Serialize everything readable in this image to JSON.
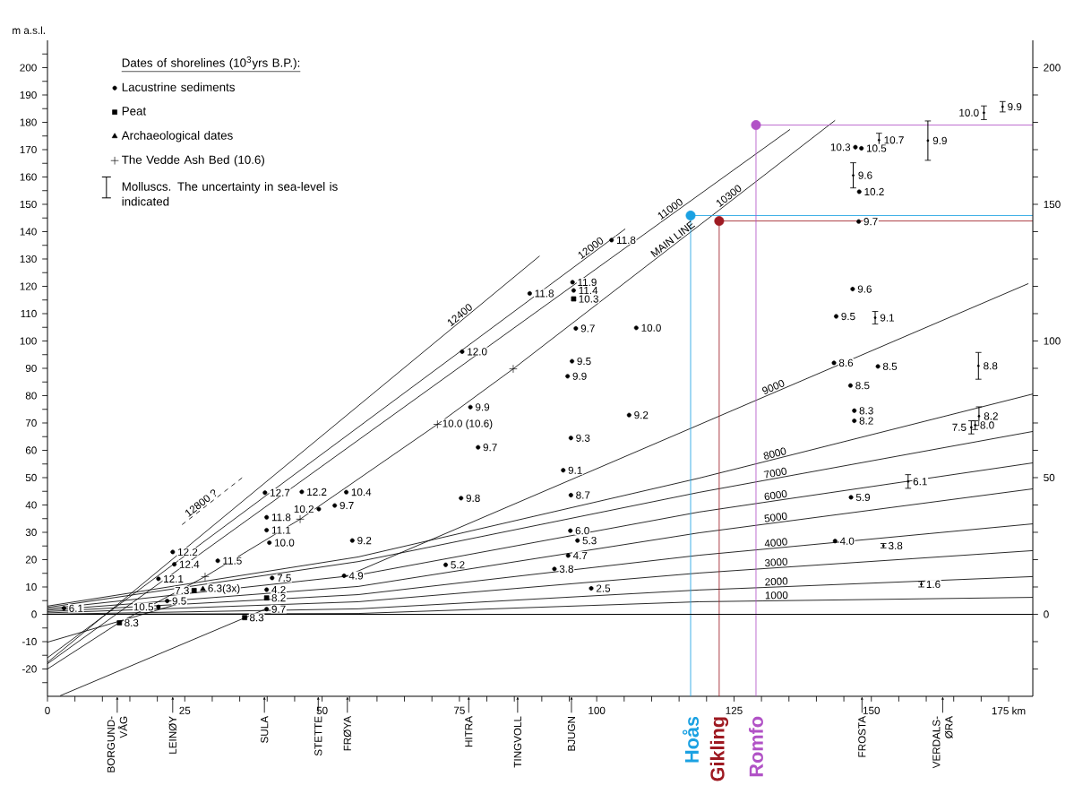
{
  "chart_data": {
    "type": "scatter",
    "ylabel": "m a.s.l.",
    "legend_title": "Dates of shorelines (10$^{3}$yrs B.P.):",
    "legend": "top left",
    "xlim": [
      0,
      179.4
    ],
    "ylim": [
      -30,
      210
    ],
    "y2lim": [
      -30,
      210
    ],
    "xticks": [
      0,
      {
        "value": 5,
        "label": null
      },
      {
        "value": 10,
        "label": null
      },
      {
        "value": 15,
        "label": null
      },
      {
        "value": 20,
        "label": null
      },
      25,
      {
        "value": 30,
        "label": null
      },
      {
        "value": 35,
        "label": null
      },
      {
        "value": 40,
        "label": null
      },
      {
        "value": 45,
        "label": null
      },
      50,
      {
        "value": 55,
        "label": null
      },
      {
        "value": 60,
        "label": null
      },
      {
        "value": 65,
        "label": null
      },
      {
        "value": 70,
        "label": null
      },
      75,
      {
        "value": 80,
        "label": null
      },
      {
        "value": 85,
        "label": null
      },
      {
        "value": 90,
        "label": null
      },
      {
        "value": 95,
        "label": null
      },
      100,
      {
        "value": 105,
        "label": null
      },
      {
        "value": 110,
        "label": null
      },
      {
        "value": 115,
        "label": null
      },
      {
        "value": 120,
        "label": null
      },
      125,
      {
        "value": 130,
        "label": null
      },
      {
        "value": 135,
        "label": null
      },
      {
        "value": 140,
        "label": null
      },
      {
        "value": 145,
        "label": null
      },
      150,
      {
        "value": 155,
        "label": null
      },
      {
        "value": 160,
        "label": null
      },
      {
        "value": 165,
        "label": null
      },
      {
        "value": 170,
        "label": null
      },
      {
        "value": 175,
        "label": "175 km"
      }
    ],
    "yticks": [
      {
        "value": -25,
        "label": null
      },
      -20,
      {
        "value": -15,
        "label": null
      },
      -10,
      {
        "value": -5,
        "label": null
      },
      0,
      {
        "value": 5,
        "label": null
      },
      10,
      {
        "value": 15,
        "label": null
      },
      20,
      {
        "value": 25,
        "label": null
      },
      30,
      {
        "value": 35,
        "label": null
      },
      40,
      {
        "value": 45,
        "label": null
      },
      50,
      {
        "value": 55,
        "label": null
      },
      60,
      {
        "value": 65,
        "label": null
      },
      70,
      {
        "value": 75,
        "label": null
      },
      80,
      {
        "value": 85,
        "label": null
      },
      90,
      {
        "value": 95,
        "label": null
      },
      100,
      {
        "value": 105,
        "label": null
      },
      110,
      {
        "value": 115,
        "label": null
      },
      120,
      {
        "value": 125,
        "label": null
      },
      130,
      {
        "value": 135,
        "label": null
      },
      140,
      {
        "value": 145,
        "label": null
      },
      150,
      {
        "value": 155,
        "label": null
      },
      160,
      {
        "value": 165,
        "label": null
      },
      170,
      {
        "value": 175,
        "label": null
      },
      180,
      {
        "value": 185,
        "label": null
      },
      190,
      {
        "value": 195,
        "label": null
      },
      200,
      {
        "value": 205,
        "label": null
      }
    ],
    "y2ticks": [
      {
        "value": -20,
        "label": null
      },
      {
        "value": -10,
        "label": null
      },
      0,
      {
        "value": 10,
        "label": null
      },
      {
        "value": 20,
        "label": null
      },
      {
        "value": 30,
        "label": null
      },
      {
        "value": 40,
        "label": null
      },
      50,
      {
        "value": 60,
        "label": null
      },
      {
        "value": 70,
        "label": null
      },
      {
        "value": 80,
        "label": null
      },
      {
        "value": 90,
        "label": null
      },
      100,
      {
        "value": 110,
        "label": null
      },
      {
        "value": 120,
        "label": null
      },
      {
        "value": 130,
        "label": null
      },
      {
        "value": 140,
        "label": null
      },
      150,
      {
        "value": 160,
        "label": null
      },
      {
        "value": 170,
        "label": null
      },
      {
        "value": 180,
        "label": null
      },
      {
        "value": 190,
        "label": null
      },
      200
    ],
    "ref_lines": [
      {
        "axis": "y",
        "value": 0
      }
    ],
    "series": [
      {
        "type": "line",
        "name": "12800 ?",
        "color": "#000000",
        "line_style": "dashed",
        "x": [
          24.5,
          25.6,
          35.6
        ],
        "values": [
          32.8,
          34.5,
          50.2
        ]
      },
      {
        "type": "line",
        "name": "12400",
        "color": "#000000",
        "x": [
          0,
          73.4,
          89.6
        ],
        "values": [
          -17.6,
          104.2,
          131.1
        ]
      },
      {
        "type": "line",
        "name": "12000",
        "color": "#000000",
        "x": [
          0,
          97.1,
          105.2
        ],
        "values": [
          -15.9,
          128.9,
          141.0
        ]
      },
      {
        "type": "line",
        "name": "11000",
        "color": "#000000",
        "x": [
          0,
          111.6,
          135.2
        ],
        "values": [
          -18.1,
          143.3,
          177.4
        ]
      },
      {
        "type": "line",
        "name": "10300",
        "color": "#000000",
        "x": [
          0,
          13.1,
          28.7,
          46.0,
          71.0,
          84.8,
          110.4,
          122.3,
          143.4
        ],
        "values": [
          -20.0,
          -3.0,
          13.8,
          34.8,
          69.5,
          89.8,
          129.5,
          147.9,
          180.7
        ]
      },
      {
        "type": "line",
        "name": "9000",
        "color": "#000000",
        "x": [
          54.2,
          130.3,
          178.6
        ],
        "values": [
          13.8,
          79.4,
          121.0
        ]
      },
      {
        "type": "line",
        "name": "8000",
        "color": "#000000",
        "x": [
          0,
          56.6,
          118.6,
          130.3,
          179.4
        ],
        "values": [
          3.0,
          21.0,
          49.8,
          55.7,
          80.6
        ]
      },
      {
        "type": "line",
        "name": "7000",
        "color": "#000000",
        "x": [
          0,
          56.6,
          118.6,
          130.3,
          179.4
        ],
        "values": [
          2.5,
          19.3,
          44.6,
          48.9,
          66.9
        ]
      },
      {
        "type": "line",
        "name": "6000",
        "color": "#000000",
        "x": [
          0,
          56.6,
          118.6,
          130.3,
          179.4
        ],
        "values": [
          2.0,
          14.4,
          37.4,
          40.9,
          55.4
        ]
      },
      {
        "type": "line",
        "name": "5000",
        "color": "#000000",
        "x": [
          0,
          56.6,
          118.6,
          130.3,
          179.4
        ],
        "values": [
          1.5,
          10.2,
          29.8,
          32.9,
          45.9
        ]
      },
      {
        "type": "line",
        "name": "4000",
        "color": "#000000",
        "x": [
          0,
          56.6,
          118.6,
          130.3,
          179.4
        ],
        "values": [
          1.0,
          7.2,
          21.6,
          23.8,
          33.1
        ]
      },
      {
        "type": "line",
        "name": "3000",
        "color": "#000000",
        "x": [
          0,
          56.6,
          118.6,
          130.3,
          179.4
        ],
        "values": [
          0.5,
          4.6,
          15.1,
          16.7,
          23.3
        ]
      },
      {
        "type": "line",
        "name": "2000",
        "color": "#000000",
        "x": [
          0,
          56.6,
          118.6,
          130.3,
          179.4
        ],
        "values": [
          0.0,
          2.0,
          8.9,
          9.8,
          13.8
        ]
      },
      {
        "type": "line",
        "name": "1000",
        "color": "#000000",
        "x": [
          0,
          56.6,
          118.6,
          130.3,
          179.4
        ],
        "values": [
          0.0,
          0.3,
          4.6,
          4.9,
          6.2
        ]
      },
      {
        "type": "line",
        "color": "#000000",
        "x": [
          2.3,
          39.8
        ],
        "values": [
          -29.8,
          2.0
        ]
      },
      {
        "type": "line",
        "color": "#000000",
        "x": [
          0,
          23.5
        ],
        "values": [
          -10.2,
          3.6
        ]
      },
      {
        "type": "line",
        "name": "Hoås",
        "color": "#1ba1e2",
        "x": [
          179.4,
          117.1,
          117.1
        ],
        "values": [
          145.9,
          145.9,
          -30
        ]
      },
      {
        "type": "line",
        "name": "Gikling",
        "color": "#9e1a22",
        "x": [
          179.4,
          122.3,
          122.3
        ],
        "values": [
          143.9,
          143.9,
          -30
        ]
      },
      {
        "type": "line",
        "name": "Romfo",
        "color": "#b152c6",
        "x": [
          179.4,
          129.0,
          129.0
        ],
        "values": [
          179.0,
          179.0,
          -30
        ]
      },
      {
        "name": "Lacustrine sediments",
        "color": "#000000",
        "marker": "circle",
        "x": [
          3.0,
          22.8,
          20.2,
          23.1,
          31.0,
          39.6,
          39.9,
          39.9,
          40.4,
          40.9,
          39.9,
          39.9,
          46.3,
          49.4,
          52.3,
          54.4,
          55.5,
          54.0,
          20.2,
          21.8,
          102.7,
          95.6,
          95.8,
          87.8,
          96.2,
          107.2,
          75.5,
          95.5,
          94.7,
          77.0,
          105.9,
          95.3,
          78.4,
          93.9,
          75.3,
          95.3,
          95.2,
          96.5,
          94.8,
          72.5,
          92.3,
          99.0,
          147.1,
          148.2,
          147.8,
          147.7,
          146.6,
          143.6,
          143.2,
          151.2,
          146.2,
          146.9,
          146.9,
          146.3,
          143.4
        ],
        "values": [
          2.2,
          22.8,
          13.0,
          18.3,
          19.6,
          44.5,
          35.5,
          30.8,
          26.2,
          13.3,
          9.0,
          1.9,
          44.8,
          38.5,
          39.8,
          44.7,
          27.0,
          14.1,
          2.7,
          4.9,
          136.9,
          121.5,
          118.5,
          117.4,
          104.6,
          104.8,
          96.1,
          92.6,
          87.1,
          75.8,
          72.9,
          64.5,
          61.1,
          52.7,
          42.5,
          43.6,
          30.6,
          27.0,
          21.5,
          18.1,
          16.6,
          9.5,
          170.9,
          170.5,
          154.6,
          143.7,
          119.0,
          109.0,
          92.0,
          90.7,
          83.7,
          74.5,
          70.8,
          42.8,
          26.8
        ]
      },
      {
        "name": "Peat",
        "color": "#000000",
        "marker": "square",
        "x": [
          13.1,
          26.7,
          35.9,
          39.9,
          95.8
        ],
        "values": [
          -3.1,
          8.7,
          -1.2,
          6.0,
          115.4
        ]
      },
      {
        "name": "Archaeological dates",
        "color": "#000000",
        "marker": "triangle",
        "x": [
          28.3
        ],
        "values": [
          9.2
        ]
      },
      {
        "name": "The Vedde Ash Bed (10.6)",
        "color": "#000000",
        "marker": "cross",
        "x": [
          28.7,
          46.0,
          71.0,
          84.8
        ],
        "values": [
          13.8,
          34.8,
          69.5,
          89.8
        ]
      },
      {
        "name": "Molluscs. The uncertainty in sea-level is indicated",
        "color": "#000000",
        "marker": "circle",
        "x": [
          146.7,
          150.7,
          151.4,
          160.3,
          170.5,
          173.9,
          169.5,
          169.6,
          168.9,
          168.2,
          156.7,
          152.2,
          159.1
        ],
        "values": [
          160.6,
          108.5,
          173.5,
          173.3,
          183.5,
          185.7,
          90.9,
          72.5,
          69.2,
          68.4,
          48.6,
          25.1,
          11.0
        ],
        "errors": [
          4.6,
          2.3,
          2.5,
          7.2,
          2.5,
          1.9,
          4.9,
          3.4,
          1.6,
          2.4,
          2.5,
          0.8,
          1.0
        ]
      },
      {
        "marker": "circle",
        "colors": [
          "#1ba1e2",
          "#9e1a22",
          "#b152c6"
        ],
        "x": [
          117.1,
          122.3,
          129.0
        ],
        "values": [
          145.9,
          143.9,
          179.0
        ]
      }
    ],
    "annotations": [
      "BORGUND-VÅG",
      "LEINØY",
      "SULA",
      "STETTE",
      "FRØYA",
      "HITRA",
      "TINGVOLL",
      "BJUGN",
      "FROSTA",
      "VERDALS-ØRA",
      {
        "text": "MAIN LINE",
        "x": 110.4,
        "y": 129.5
      },
      {
        "text": "6.1",
        "x": 3.0,
        "y": 2.2
      },
      {
        "text": "12.2",
        "x": 22.8,
        "y": 22.8
      },
      {
        "text": "12.1",
        "x": 20.2,
        "y": 13.0
      },
      {
        "text": "12.4",
        "x": 23.1,
        "y": 18.3
      },
      {
        "text": "11.5",
        "x": 31.0,
        "y": 19.6
      },
      {
        "text": "12.7",
        "x": 39.6,
        "y": 44.5
      },
      {
        "text": "11.8",
        "x": 39.9,
        "y": 35.5
      },
      {
        "text": "11.1",
        "x": 39.9,
        "y": 30.8
      },
      {
        "text": "10.0",
        "x": 40.4,
        "y": 26.2
      },
      {
        "text": "7.5",
        "x": 40.9,
        "y": 13.3
      },
      {
        "text": "4.2",
        "x": 39.9,
        "y": 9.0
      },
      {
        "text": "9.7",
        "x": 39.9,
        "y": 1.9
      },
      {
        "text": "12.2",
        "x": 46.3,
        "y": 44.8
      },
      {
        "text": "10.2",
        "x": 49.4,
        "y": 38.5
      },
      {
        "text": "9.7",
        "x": 52.3,
        "y": 39.8
      },
      {
        "text": "10.4",
        "x": 54.4,
        "y": 44.7
      },
      {
        "text": "9.2",
        "x": 55.5,
        "y": 27.0
      },
      {
        "text": "4.9",
        "x": 54.0,
        "y": 14.1
      },
      {
        "text": "10.5",
        "x": 20.2,
        "y": 2.7
      },
      {
        "text": "9.5",
        "x": 21.8,
        "y": 4.9
      },
      {
        "text": "11.8",
        "x": 102.7,
        "y": 136.9
      },
      {
        "text": "11.9",
        "x": 95.6,
        "y": 121.5
      },
      {
        "text": "11.4",
        "x": 95.8,
        "y": 118.5
      },
      {
        "text": "11.8",
        "x": 87.8,
        "y": 117.4
      },
      {
        "text": "9.7",
        "x": 96.2,
        "y": 104.6
      },
      {
        "text": "10.0",
        "x": 107.2,
        "y": 104.8
      },
      {
        "text": "12.0",
        "x": 75.5,
        "y": 96.1
      },
      {
        "text": "9.5",
        "x": 95.5,
        "y": 92.6
      },
      {
        "text": "9.9",
        "x": 94.7,
        "y": 87.1
      },
      {
        "text": "9.9",
        "x": 77.0,
        "y": 75.8
      },
      {
        "text": "9.2",
        "x": 105.9,
        "y": 72.9
      },
      {
        "text": "9.3",
        "x": 95.3,
        "y": 64.5
      },
      {
        "text": "9.7",
        "x": 78.4,
        "y": 61.1
      },
      {
        "text": "9.1",
        "x": 93.9,
        "y": 52.7
      },
      {
        "text": "9.8",
        "x": 75.3,
        "y": 42.5
      },
      {
        "text": "8.7",
        "x": 95.3,
        "y": 43.6
      },
      {
        "text": "6.0",
        "x": 95.2,
        "y": 30.6
      },
      {
        "text": "5.3",
        "x": 96.5,
        "y": 27.0
      },
      {
        "text": "4.7",
        "x": 94.8,
        "y": 21.5
      },
      {
        "text": "5.2",
        "x": 72.5,
        "y": 18.1
      },
      {
        "text": "3.8",
        "x": 92.3,
        "y": 16.6
      },
      {
        "text": "2.5",
        "x": 99.0,
        "y": 9.5
      },
      {
        "text": "10.3",
        "x": 147.1,
        "y": 170.9
      },
      {
        "text": "10.5",
        "x": 148.2,
        "y": 170.5
      },
      {
        "text": "10.2",
        "x": 147.8,
        "y": 154.6
      },
      {
        "text": "9.7",
        "x": 147.7,
        "y": 143.7
      },
      {
        "text": "9.6",
        "x": 146.6,
        "y": 119.0
      },
      {
        "text": "9.5",
        "x": 143.6,
        "y": 109.0
      },
      {
        "text": "8.6",
        "x": 143.2,
        "y": 92.0
      },
      {
        "text": "8.5",
        "x": 151.2,
        "y": 90.7
      },
      {
        "text": "8.5",
        "x": 146.2,
        "y": 83.7
      },
      {
        "text": "8.3",
        "x": 146.9,
        "y": 74.5
      },
      {
        "text": "8.2",
        "x": 146.9,
        "y": 70.8
      },
      {
        "text": "5.9",
        "x": 146.3,
        "y": 42.8
      },
      {
        "text": "4.0",
        "x": 143.4,
        "y": 26.8
      },
      {
        "text": "8.3",
        "x": 13.1,
        "y": -3.1
      },
      {
        "text": "7.3",
        "x": 26.7,
        "y": 8.7
      },
      {
        "text": "8.3",
        "x": 35.9,
        "y": -1.2
      },
      {
        "text": "8.2",
        "x": 39.9,
        "y": 6.0
      },
      {
        "text": "10.3",
        "x": 95.8,
        "y": 115.4
      },
      {
        "text": "6.3(3x)",
        "x": 28.3,
        "y": 9.2
      },
      {
        "text": "10.0 (10.6)",
        "x": 71.0,
        "y": 69.5
      },
      {
        "text": "9.6",
        "x": 146.7,
        "y": 160.6
      },
      {
        "text": "9.1",
        "x": 150.7,
        "y": 108.5
      },
      {
        "text": "10.7",
        "x": 151.4,
        "y": 173.5
      },
      {
        "text": "9.9",
        "x": 160.3,
        "y": 173.3
      },
      {
        "text": "10.0",
        "x": 170.5,
        "y": 183.5
      },
      {
        "text": "9.9",
        "x": 173.9,
        "y": 185.7
      },
      {
        "text": "8.8",
        "x": 169.5,
        "y": 90.9
      },
      {
        "text": "8.2",
        "x": 169.6,
        "y": 72.5
      },
      {
        "text": "8.0",
        "x": 168.9,
        "y": 69.2
      },
      {
        "text": "7.5",
        "x": 168.2,
        "y": 68.4
      },
      {
        "text": "6.1",
        "x": 156.7,
        "y": 48.6
      },
      {
        "text": "3.8",
        "x": 152.2,
        "y": 25.1
      },
      {
        "text": "1.6",
        "x": 159.1,
        "y": 11.0
      }
    ]
  }
}
